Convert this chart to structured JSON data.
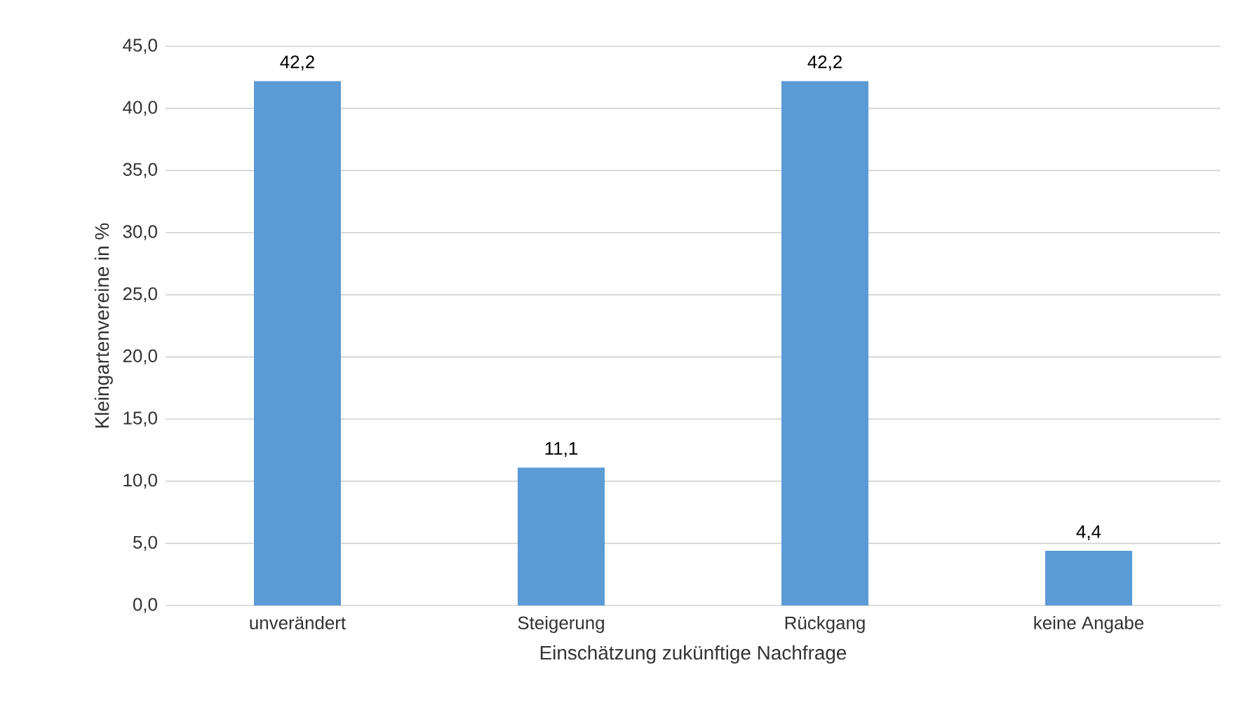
{
  "chart_data": {
    "type": "bar",
    "xlabel": "Einschätzung zukünftige Nachfrage",
    "ylabel": "Kleingartenvereine in %",
    "categories": [
      "unverändert",
      "Steigerung",
      "Rückgang",
      "keine Angabe"
    ],
    "values": [
      42.2,
      11.1,
      42.2,
      4.4
    ],
    "value_labels": [
      "42,2",
      "11,1",
      "42,2",
      "4,4"
    ],
    "color": "#5b9bd5",
    "ylim": [
      0,
      45
    ],
    "yticks": [
      {
        "value": 0,
        "label": "0,0"
      },
      {
        "value": 5,
        "label": "5,0"
      },
      {
        "value": 10,
        "label": "10,0"
      },
      {
        "value": 15,
        "label": "15,0"
      },
      {
        "value": 20,
        "label": "20,0"
      },
      {
        "value": 25,
        "label": "25,0"
      },
      {
        "value": 30,
        "label": "30,0"
      },
      {
        "value": 35,
        "label": "35,0"
      },
      {
        "value": 40,
        "label": "40,0"
      },
      {
        "value": 45,
        "label": "45,0"
      }
    ],
    "grid": "y"
  }
}
